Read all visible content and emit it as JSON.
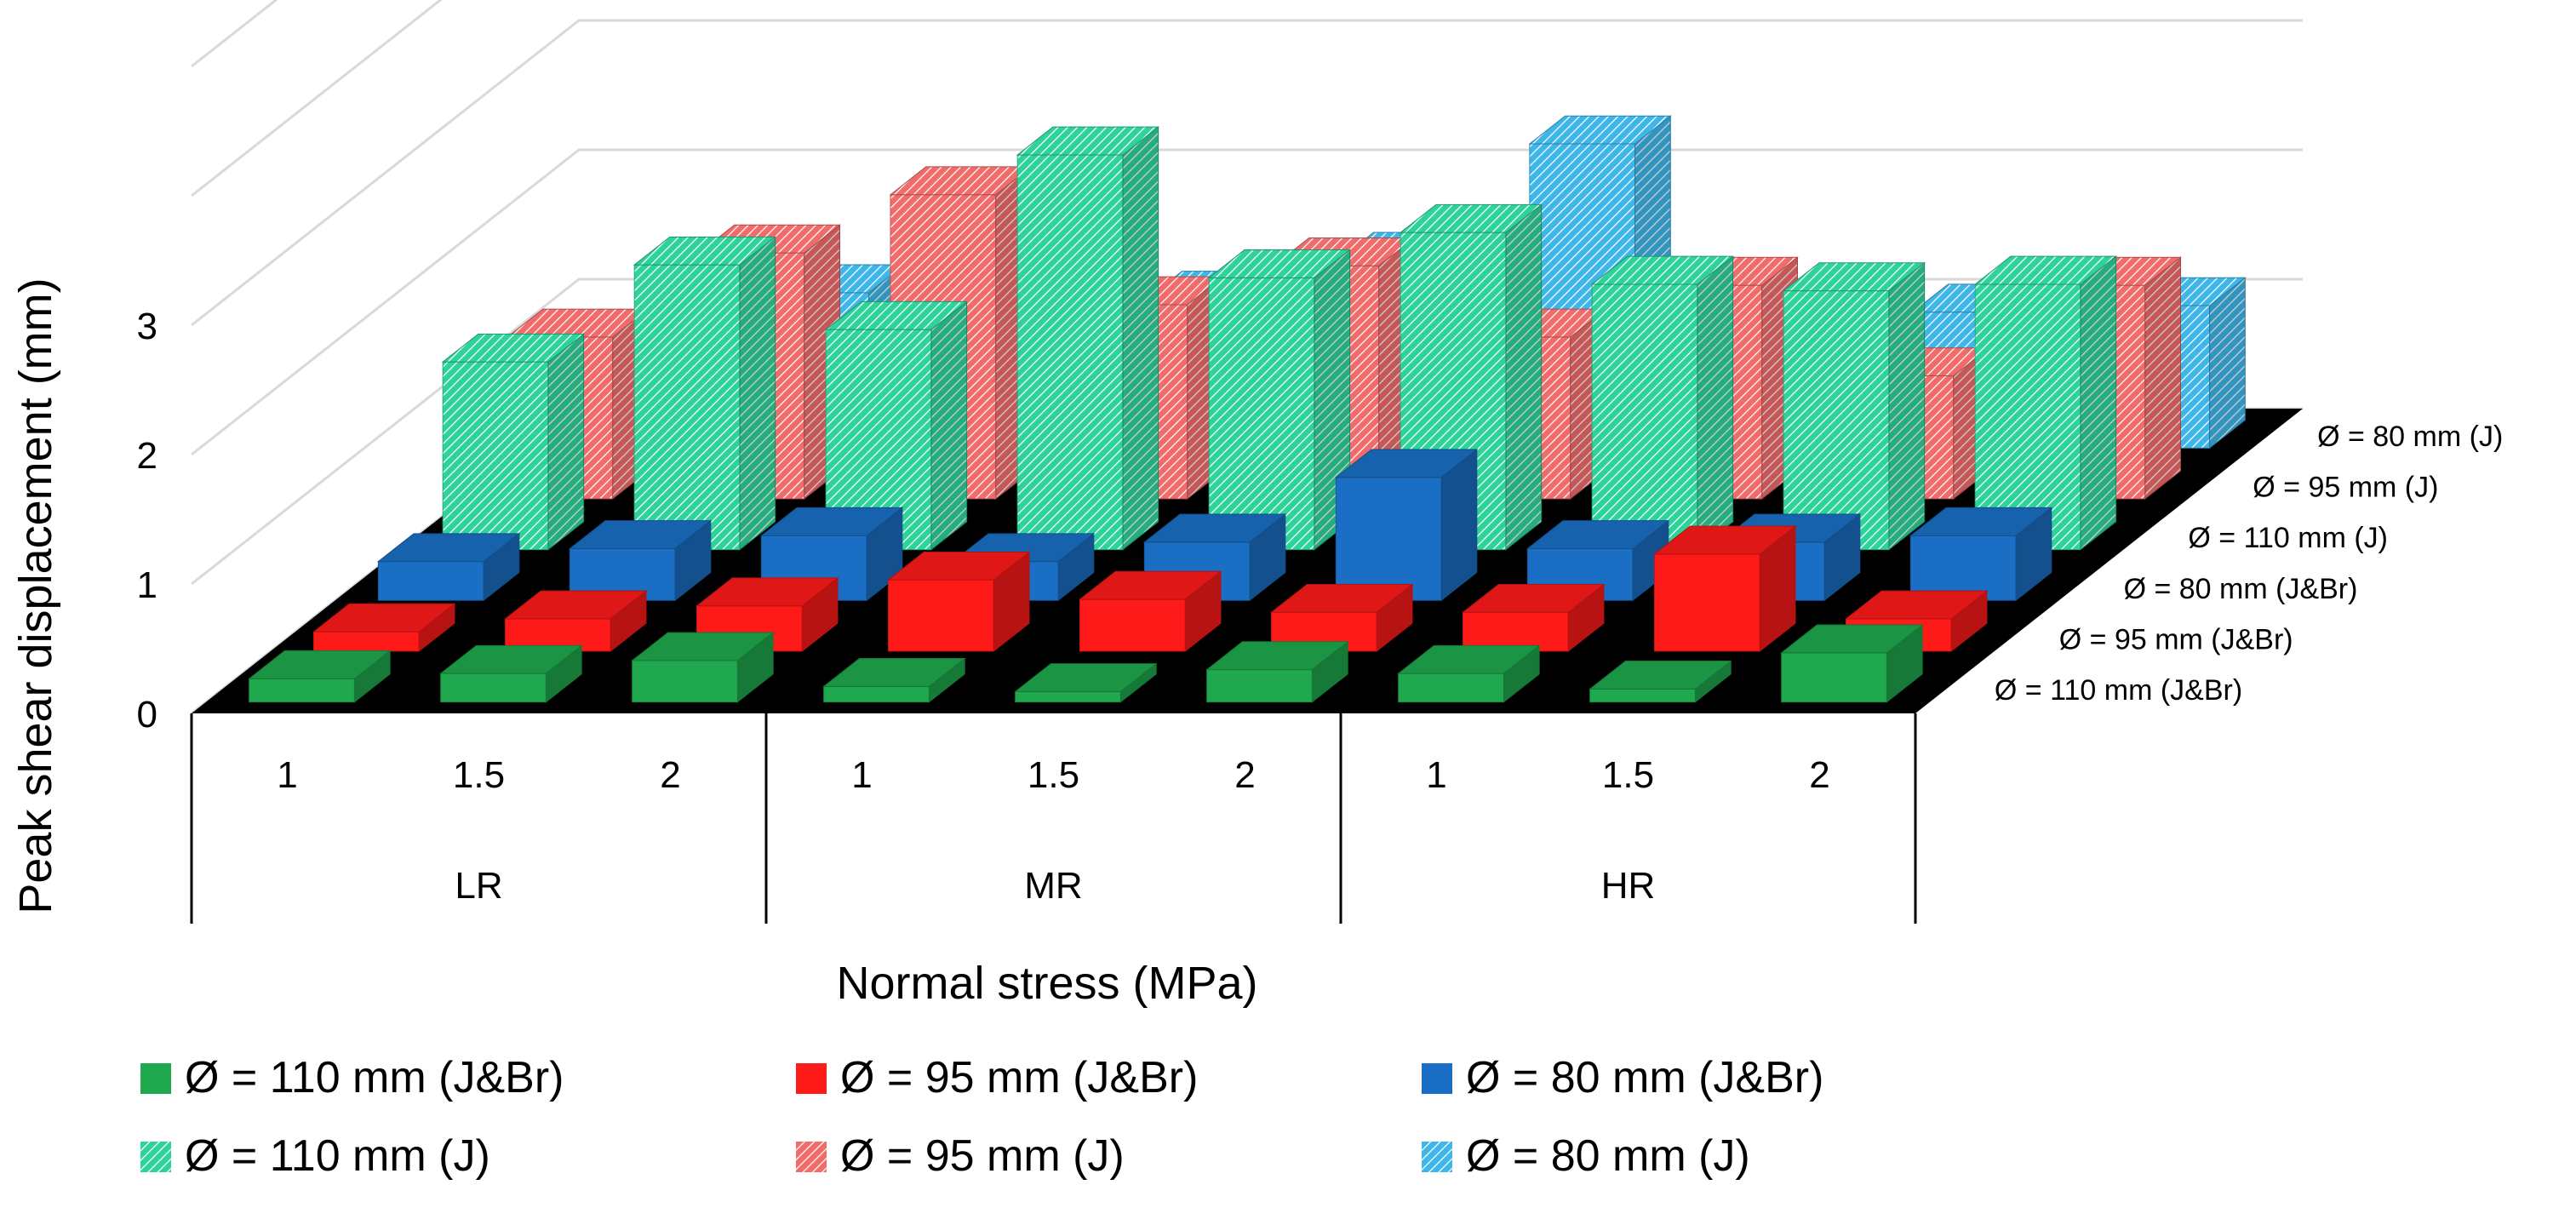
{
  "chart_data": {
    "type": "bar3d",
    "ylabel": "Peak shear displacement (mm)",
    "xlabel": "Normal stress (MPa)",
    "y_ticks": [
      0,
      1,
      2,
      3
    ],
    "groups": [
      "LR",
      "MR",
      "HR"
    ],
    "stress_levels": [
      "1",
      "1.5",
      "2"
    ],
    "categories": [
      "1",
      "1.5",
      "2",
      "1",
      "1.5",
      "2",
      "1",
      "1.5",
      "2"
    ],
    "series": [
      {
        "name": "Ø = 110 mm (J&Br)",
        "color": "#1fa84d",
        "pattern": "solid",
        "values": [
          0.18,
          0.22,
          0.32,
          0.12,
          0.08,
          0.25,
          0.22,
          0.1,
          0.38
        ]
      },
      {
        "name": "Ø = 95 mm (J&Br)",
        "color": "#ff1a1a",
        "pattern": "solid",
        "values": [
          0.15,
          0.25,
          0.35,
          0.55,
          0.4,
          0.3,
          0.3,
          0.75,
          0.25
        ]
      },
      {
        "name": "Ø = 80 mm (J&Br)",
        "color": "#1a6fc4",
        "pattern": "solid",
        "values": [
          0.3,
          0.4,
          0.5,
          0.3,
          0.45,
          0.95,
          0.4,
          0.45,
          0.5
        ]
      },
      {
        "name": "Ø = 110 mm (J)",
        "color": "#2ed39a",
        "pattern": "hatched",
        "values": [
          1.45,
          2.2,
          1.7,
          3.05,
          2.1,
          2.45,
          2.05,
          2.0,
          2.05
        ]
      },
      {
        "name": "Ø = 95 mm (J)",
        "color": "#f26b6b",
        "pattern": "hatched",
        "values": [
          1.25,
          1.9,
          2.35,
          1.5,
          1.8,
          1.25,
          1.65,
          0.95,
          1.65
        ]
      },
      {
        "name": "Ø = 80 mm (J)",
        "color": "#3eb6ea",
        "pattern": "hatched",
        "values": [
          0.8,
          1.2,
          1.6,
          1.15,
          1.45,
          2.35,
          0.85,
          1.05,
          1.1
        ]
      }
    ],
    "legend": {
      "placement": "bottom",
      "rows": [
        [
          "Ø = 110 mm (J&Br)",
          "Ø = 95 mm (J&Br)",
          "Ø = 80 mm (J&Br)"
        ],
        [
          "Ø = 110 mm (J)",
          "Ø = 95 mm (J)",
          "Ø = 80 mm (J)"
        ]
      ]
    }
  }
}
